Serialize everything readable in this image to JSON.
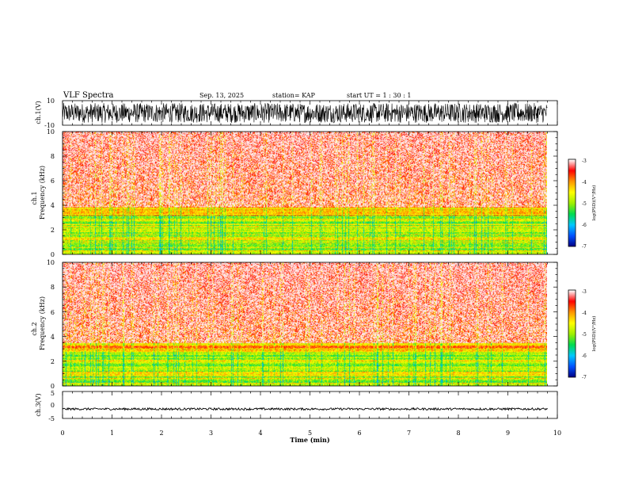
{
  "header": {
    "title": "VLF Spectra",
    "date": "Sep. 13, 2025",
    "station": "station= KAP",
    "start": "start  UT =   1 : 30 : 1"
  },
  "chart_data": [
    {
      "type": "line",
      "name": "ch1-waveform",
      "ylabel": "ch.1(V)",
      "ylim": [
        -10,
        10
      ],
      "yticks": [
        "10",
        "-10"
      ],
      "xlim": [
        0,
        10
      ],
      "data_end_min": 9.8,
      "description_values": {
        "mean": 0,
        "amplitude": 8
      }
    },
    {
      "type": "heatmap",
      "name": "ch1-spectrogram",
      "ylabel_line1": "ch.1",
      "ylabel_line2": "Frequency  (kHz)",
      "ylim": [
        0,
        10
      ],
      "yticks": [
        "0",
        "2",
        "4",
        "6",
        "8",
        "10"
      ],
      "xlim": [
        0,
        10
      ],
      "colorbar": {
        "ticks": [
          "-3",
          "-4",
          "-5",
          "-6",
          "-7"
        ],
        "label": "log(PSD)(V²/Hz)"
      }
    },
    {
      "type": "heatmap",
      "name": "ch2-spectrogram",
      "ylabel_line1": "ch.2",
      "ylabel_line2": "Frequency  (kHz)",
      "ylim": [
        0,
        10
      ],
      "yticks": [
        "0",
        "2",
        "4",
        "6",
        "8",
        "10"
      ],
      "xlim": [
        0,
        10
      ],
      "colorbar": {
        "ticks": [
          "-3",
          "-4",
          "-5",
          "-6",
          "-7"
        ],
        "label": "log(PSD)(V²/Hz)"
      }
    },
    {
      "type": "line",
      "name": "ch3-waveform",
      "ylabel": "ch.3(V)",
      "ylim": [
        -5,
        5
      ],
      "yticks": [
        "5",
        "0",
        "-5"
      ],
      "xlim": [
        0,
        10
      ],
      "data_end_min": 9.8,
      "description_values": {
        "mean": -1.5,
        "amplitude": 0.4
      }
    }
  ],
  "xaxis": {
    "label": "Time  (min)",
    "ticks": [
      "0",
      "1",
      "2",
      "3",
      "4",
      "5",
      "6",
      "7",
      "8",
      "9",
      "10"
    ]
  },
  "colors": {
    "background": "#ffffff",
    "trace": "#000000",
    "colormap": [
      "#000080",
      "#0050ff",
      "#00c8ff",
      "#00dc50",
      "#a0f000",
      "#ffff00",
      "#ff9600",
      "#ff0000",
      "#ffffff"
    ]
  }
}
